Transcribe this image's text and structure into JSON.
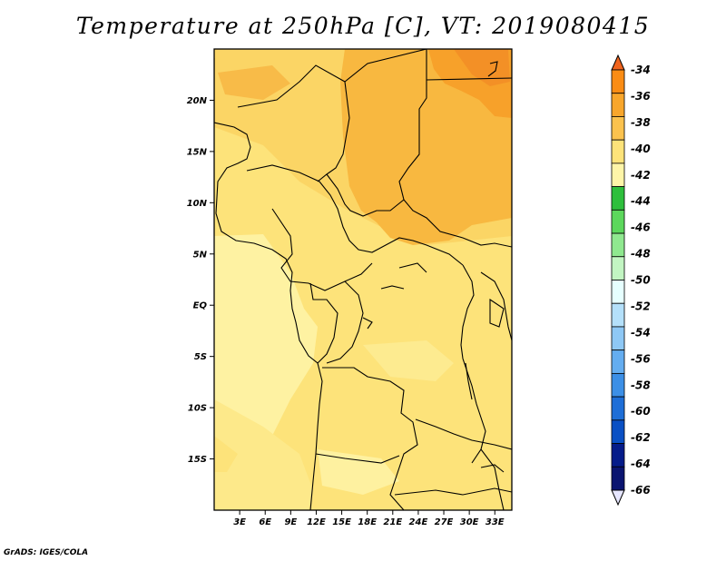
{
  "title": "Temperature at 250hPa [C], VT: 2019080415",
  "credit": "GrADS: IGES/COLA",
  "map": {
    "lon_range": [
      0,
      35
    ],
    "lat_range": [
      -20,
      25
    ],
    "lat_ticks": [
      "20N",
      "15N",
      "10N",
      "5N",
      "EQ",
      "5S",
      "10S",
      "15S"
    ],
    "lon_ticks": [
      "3E",
      "6E",
      "9E",
      "12E",
      "15E",
      "18E",
      "21E",
      "24E",
      "27E",
      "30E",
      "33E"
    ]
  },
  "colorbar": {
    "labels": [
      "-34",
      "-36",
      "-38",
      "-40",
      "-42",
      "-44",
      "-46",
      "-48",
      "-50",
      "-52",
      "-54",
      "-56",
      "-58",
      "-60",
      "-62",
      "-64",
      "-66"
    ],
    "colors": [
      "#f0641e",
      "#fa8c14",
      "#f8a62c",
      "#fbc24e",
      "#fde37a",
      "#fef5a8",
      "#2ebf3c",
      "#5cd75c",
      "#8fe88f",
      "#c2f5c2",
      "#e6ffff",
      "#b4e0fa",
      "#8ec8f5",
      "#64adf0",
      "#3c8fe6",
      "#1e6ed7",
      "#0a50c4",
      "#051c8a",
      "#0a1470",
      "#e6e6ff"
    ]
  }
}
